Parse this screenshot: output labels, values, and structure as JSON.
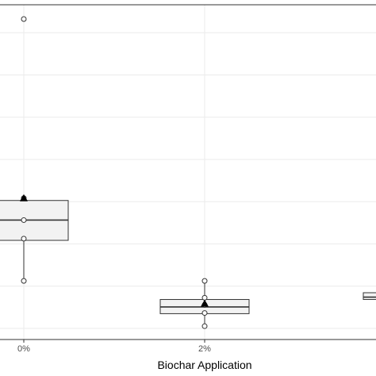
{
  "chart_data": {
    "type": "box",
    "xlabel": "Biochar Application",
    "ylabel": "",
    "title": "",
    "categories": [
      "0%",
      "2%",
      ""
    ],
    "grid": true,
    "legend": "none",
    "ylim": [
      0,
      100
    ],
    "boxes": [
      {
        "category": "0%",
        "q1": 27.0,
        "median": 33.0,
        "q3": 38.8,
        "whisker_low": 15.0,
        "whisker_high": 39.5,
        "mean": 39.5,
        "points": [
          92.5,
          39.5,
          33.0,
          27.5,
          15.0
        ]
      },
      {
        "category": "2%",
        "q1": 5.3,
        "median": 7.3,
        "q3": 9.5,
        "whisker_low": 1.6,
        "whisker_high": 15.0,
        "mean": 8.3,
        "points": [
          15.0,
          10.0,
          7.9,
          5.5,
          1.6
        ]
      },
      {
        "category": "",
        "q1": 9.5,
        "median": 10.2,
        "q3": 11.5,
        "whisker_low": 9.5,
        "whisker_high": 11.5,
        "mean": null,
        "points": []
      }
    ],
    "colors": {
      "box_fill": "#f2f2f2",
      "box_stroke": "#333333",
      "grid": "#ebebeb",
      "border": "#333333",
      "mean_marker": "#000000"
    }
  }
}
